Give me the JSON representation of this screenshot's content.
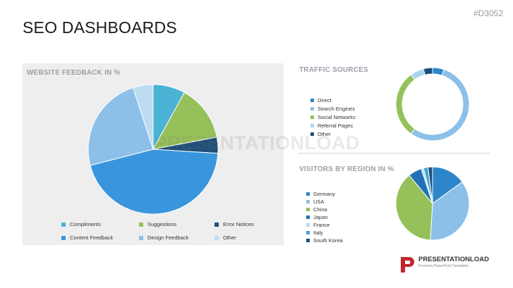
{
  "slide": {
    "id": "#D3052",
    "title": "SEO DASHBOARDS"
  },
  "watermark": "PRESENTATIONLOAD",
  "logo": {
    "name": "PRESENTATIONLOAD",
    "tagline": "Premium PowerPoint Templates"
  },
  "chart_data": [
    {
      "type": "pie",
      "title": "WEBSITE FEEDBACK IN %",
      "categories": [
        "Compliments",
        "Suggestions",
        "Error Notices",
        "Content Feedback",
        "Design Feedback",
        "Other"
      ],
      "values": [
        8,
        14,
        4,
        45,
        24,
        5
      ],
      "colors": [
        "#4ab3d6",
        "#96c05a",
        "#1f4f7a",
        "#3a96dc",
        "#8cc0e8",
        "#bcdcf2"
      ],
      "legend_position": "bottom"
    },
    {
      "type": "pie",
      "subtype": "donut",
      "title": "TRAFFIC SOURCES",
      "categories": [
        "Direct",
        "Search Engines",
        "Social Networks",
        "Referral Pages",
        "Other"
      ],
      "values": [
        5,
        55,
        30,
        6,
        4
      ],
      "colors": [
        "#2d86c9",
        "#8cc0e8",
        "#96c05a",
        "#a9d6ea",
        "#1f4f7a"
      ],
      "legend_position": "left"
    },
    {
      "type": "pie",
      "title": "VISITORS BY REGION IN %",
      "categories": [
        "Germany",
        "USA",
        "China",
        "Japan",
        "France",
        "Italy",
        "South Korea"
      ],
      "values": [
        15,
        36,
        38,
        6,
        1,
        2,
        2
      ],
      "colors": [
        "#2d86c9",
        "#8cc0e8",
        "#96c05a",
        "#2271b5",
        "#b9dcf2",
        "#3ea6d6",
        "#1f4f7a"
      ],
      "legend_position": "left"
    }
  ]
}
